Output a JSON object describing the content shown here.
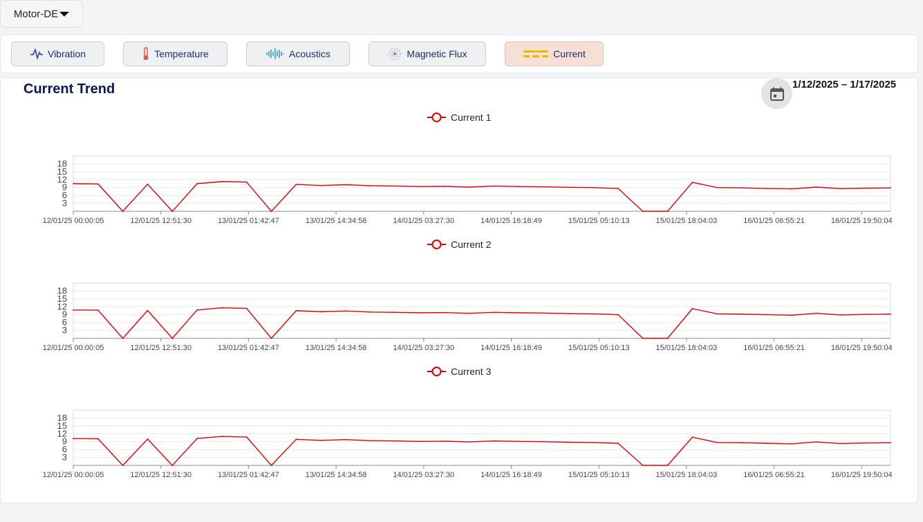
{
  "asset_selector": {
    "label": "Motor-DE"
  },
  "tabs": [
    {
      "label": "Vibration",
      "icon": "vibration-icon",
      "active": false
    },
    {
      "label": "Temperature",
      "icon": "thermometer-icon",
      "active": false
    },
    {
      "label": "Acoustics",
      "icon": "sound-wave-icon",
      "active": false
    },
    {
      "label": "Magnetic Flux",
      "icon": "magnet-icon",
      "active": false
    },
    {
      "label": "Current",
      "icon": "current-icon",
      "active": true
    }
  ],
  "panel": {
    "title": "Current Trend",
    "date_range": "1/12/2025 – 1/17/2025",
    "calendar_icon": "calendar-icon"
  },
  "colors": {
    "series": "#e00000",
    "title": "#0b1660",
    "active_tab": "#f6e0d6"
  },
  "chart_data": [
    {
      "type": "line",
      "series": [
        {
          "name": "Current 1",
          "values": [
            10.5,
            10.4,
            0,
            10.3,
            0,
            10.5,
            11.3,
            11.1,
            0,
            10.2,
            9.8,
            10.1,
            9.7,
            9.6,
            9.4,
            9.5,
            9.2,
            9.6,
            9.4,
            9.3,
            9.1,
            9.0,
            8.7,
            0,
            0,
            11.0,
            9.0,
            8.9,
            8.7,
            8.5,
            9.2,
            8.6,
            8.8,
            8.9
          ]
        }
      ],
      "x_ticks": [
        "12/01/25 00:00:05",
        "12/01/25 12:51:30",
        "13/01/25 01:42:47",
        "13/01/25 14:34:58",
        "14/01/25 03:27:30",
        "14/01/25 16:18:49",
        "15/01/25 05:10:13",
        "15/01/25 18:04:03",
        "16/01/25 06:55:21",
        "16/01/25 19:50:04"
      ],
      "y_ticks": [
        3,
        6,
        9,
        12,
        15,
        18
      ],
      "ylim": [
        0,
        21
      ],
      "legend": "top-center",
      "grid": true
    },
    {
      "type": "line",
      "series": [
        {
          "name": "Current 2",
          "values": [
            10.8,
            10.7,
            0,
            10.6,
            0,
            10.8,
            11.6,
            11.4,
            0,
            10.5,
            10.1,
            10.4,
            10.0,
            9.9,
            9.7,
            9.8,
            9.5,
            9.9,
            9.7,
            9.6,
            9.4,
            9.3,
            9.0,
            0,
            0,
            11.3,
            9.3,
            9.2,
            9.0,
            8.8,
            9.5,
            8.9,
            9.1,
            9.2
          ]
        }
      ],
      "x_ticks": [
        "12/01/25 00:00:05",
        "12/01/25 12:51:30",
        "13/01/25 01:42:47",
        "13/01/25 14:34:58",
        "14/01/25 03:27:30",
        "14/01/25 16:18:49",
        "15/01/25 05:10:13",
        "15/01/25 18:04:03",
        "16/01/25 06:55:21",
        "16/01/25 19:50:04"
      ],
      "y_ticks": [
        3,
        6,
        9,
        12,
        15,
        18
      ],
      "ylim": [
        0,
        21
      ],
      "legend": "top-center",
      "grid": true
    },
    {
      "type": "line",
      "series": [
        {
          "name": "Current 3",
          "values": [
            10.2,
            10.1,
            0,
            10.0,
            0,
            10.2,
            11.0,
            10.8,
            0,
            9.9,
            9.5,
            9.8,
            9.4,
            9.3,
            9.1,
            9.2,
            8.9,
            9.3,
            9.1,
            9.0,
            8.8,
            8.7,
            8.4,
            0,
            0,
            10.7,
            8.7,
            8.6,
            8.4,
            8.2,
            8.9,
            8.3,
            8.5,
            8.6
          ]
        }
      ],
      "x_ticks": [
        "12/01/25 00:00:05",
        "12/01/25 12:51:30",
        "13/01/25 01:42:47",
        "13/01/25 14:34:58",
        "14/01/25 03:27:30",
        "14/01/25 16:18:49",
        "15/01/25 05:10:13",
        "15/01/25 18:04:03",
        "16/01/25 06:55:21",
        "16/01/25 19:50:04"
      ],
      "y_ticks": [
        3,
        6,
        9,
        12,
        15,
        18
      ],
      "ylim": [
        0,
        21
      ],
      "legend": "top-center",
      "grid": true
    }
  ]
}
